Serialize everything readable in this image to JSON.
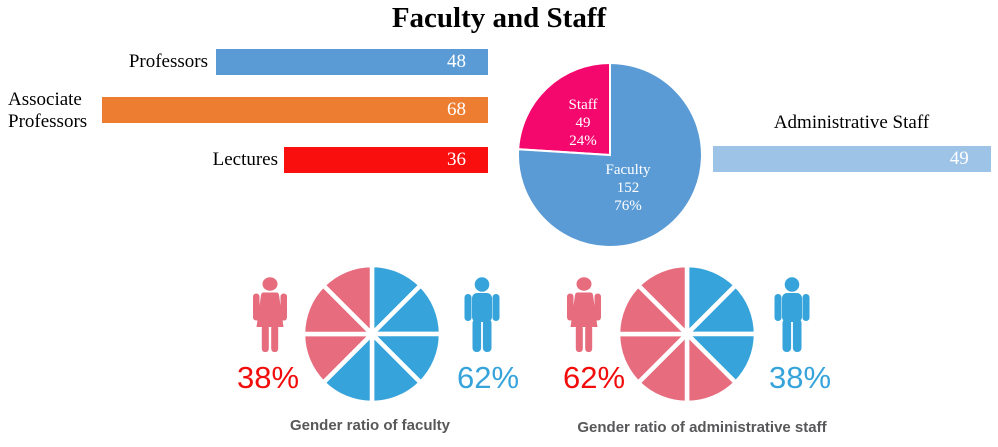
{
  "title": "Faculty and Staff",
  "colors": {
    "bar_blue": "#5B9BD5",
    "bar_orange": "#ED7D31",
    "bar_red": "#FA0F0F",
    "bar_light_blue": "#9DC3E6",
    "pie_pink": "#F4086E",
    "pie_blue": "#5B9BD5",
    "petal_rose": "#E66C7E",
    "petal_sky": "#36A4DB",
    "pct_red": "#F20D0D",
    "pct_blue": "#36A4DB",
    "caption_gray": "#58585A"
  },
  "bar_chart": {
    "rows": [
      {
        "label": "Professors",
        "value": "48"
      },
      {
        "label": "Associate Professors",
        "value": "68"
      },
      {
        "label": "Lectures",
        "value": "36"
      }
    ]
  },
  "pie": {
    "staff_block": "Staff\n49\n24%",
    "faculty_block": "Faculty\n152\n76%"
  },
  "admin_bar": {
    "label": "Administrative Staff",
    "value": "49"
  },
  "gender_charts": [
    {
      "female_pct": "38%",
      "male_pct": "62%",
      "caption": "Gender ratio of faculty"
    },
    {
      "female_pct": "62%",
      "male_pct": "38%",
      "caption": "Gender ratio of administrative staff"
    }
  ],
  "chart_data": [
    {
      "type": "bar",
      "orientation": "horizontal",
      "title": "Faculty and Staff",
      "categories": [
        "Professors",
        "Associate Professors",
        "Lectures"
      ],
      "values": [
        48,
        68,
        36
      ],
      "colors": [
        "#5B9BD5",
        "#ED7D31",
        "#FA0F0F"
      ],
      "value_labels": true,
      "bars_right_aligned": true,
      "axis_shown": false
    },
    {
      "type": "pie",
      "labels": [
        "Staff",
        "Faculty"
      ],
      "values": [
        49,
        152
      ],
      "percents": [
        24,
        76
      ],
      "colors": [
        "#F4086E",
        "#5B9BD5"
      ],
      "start_angle_deg": 273.6,
      "labels_inside": true
    },
    {
      "type": "bar",
      "orientation": "horizontal",
      "categories": [
        "Administrative Staff"
      ],
      "values": [
        49
      ],
      "colors": [
        "#9DC3E6"
      ],
      "value_labels": true
    },
    {
      "type": "pie",
      "variant": "petal-8",
      "title": "Gender ratio of faculty",
      "labels": [
        "Female",
        "Male"
      ],
      "values": [
        38,
        62
      ],
      "petals": 8,
      "colors": [
        "#E66C7E",
        "#36A4DB"
      ]
    },
    {
      "type": "pie",
      "variant": "petal-8",
      "title": "Gender ratio of administrative staff",
      "labels": [
        "Female",
        "Male"
      ],
      "values": [
        62,
        38
      ],
      "petals": 8,
      "colors": [
        "#E66C7E",
        "#36A4DB"
      ]
    }
  ]
}
